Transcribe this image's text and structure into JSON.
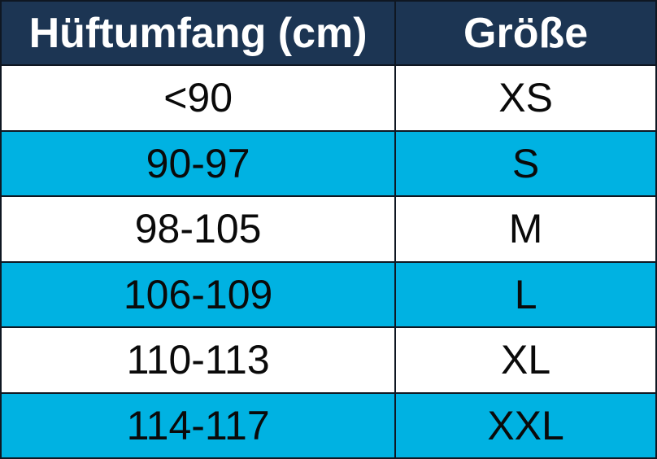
{
  "table": {
    "headers": {
      "hip": "Hüftumfang (cm)",
      "size": "Größe"
    },
    "rows": [
      {
        "range": "<90",
        "size": "XS",
        "highlight": false
      },
      {
        "range": "90-97",
        "size": "S",
        "highlight": true
      },
      {
        "range": "98-105",
        "size": "M",
        "highlight": false
      },
      {
        "range": "106-109",
        "size": "L",
        "highlight": true
      },
      {
        "range": "110-113",
        "size": "XL",
        "highlight": false
      },
      {
        "range": "114-117",
        "size": "XXL",
        "highlight": true
      }
    ],
    "colors": {
      "header_bg": "#1c3553",
      "header_text": "#ffffff",
      "row_bg": "#ffffff",
      "row_alt_bg": "#00b2e2",
      "cell_text": "#0a0a0a",
      "border": "#0f1722"
    }
  },
  "chart_data": {
    "type": "table",
    "title": "",
    "columns": [
      "Hüftumfang (cm)",
      "Größe"
    ],
    "rows": [
      [
        "<90",
        "XS"
      ],
      [
        "90-97",
        "S"
      ],
      [
        "98-105",
        "M"
      ],
      [
        "106-109",
        "L"
      ],
      [
        "110-113",
        "XL"
      ],
      [
        "114-117",
        "XXL"
      ]
    ],
    "notes": "Size chart mapping hip circumference in cm to garment size; alternating rows highlighted cyan"
  }
}
